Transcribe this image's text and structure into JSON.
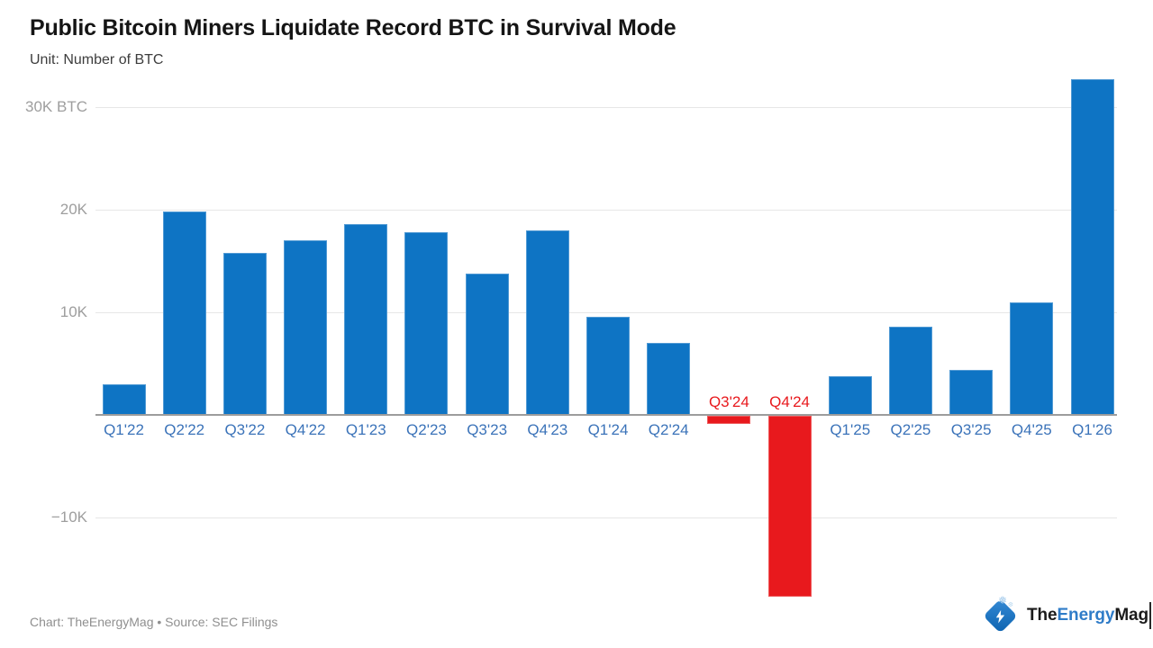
{
  "title": "Public Bitcoin Miners Liquidate Record BTC in Survival Mode",
  "subtitle": "Unit: Number of BTC",
  "footer": {
    "credit": "Chart: TheEnergyMag • Source: SEC Filings"
  },
  "logo": {
    "icon": "lightning-bolt-icon",
    "text_the": "The",
    "text_energy": "Energy",
    "text_mag": "Mag"
  },
  "chart_data": {
    "type": "bar",
    "title": "Public Bitcoin Miners Liquidate Record BTC in Survival Mode",
    "unit_label": "Unit: Number of BTC",
    "xlabel": "",
    "ylabel": "Number of BTC",
    "categories": [
      "Q1'22",
      "Q2'22",
      "Q3'22",
      "Q4'22",
      "Q1'23",
      "Q2'23",
      "Q3'23",
      "Q4'23",
      "Q1'24",
      "Q2'24",
      "Q3'24",
      "Q4'24",
      "Q1'25",
      "Q2'25",
      "Q3'25",
      "Q4'25",
      "Q1'26"
    ],
    "values": [
      3000,
      19800,
      15800,
      17000,
      18600,
      17800,
      13800,
      18000,
      9600,
      7000,
      -800,
      -17600,
      3800,
      8600,
      4400,
      11000,
      32700
    ],
    "ylim": [
      -20000,
      34000
    ],
    "yticks": [
      {
        "value": 30000,
        "label": "30K BTC"
      },
      {
        "value": 20000,
        "label": "20K"
      },
      {
        "value": 10000,
        "label": "10K"
      },
      {
        "value": -10000,
        "label": "−10K"
      }
    ],
    "grid": "horizontal",
    "legend": "none",
    "positive_color": "#0e74c4",
    "negative_color": "#e8191d",
    "positive_label_color": "#3b73b9",
    "negative_label_color": "#e8191d",
    "tick_label_color": "#9e9e9e"
  }
}
